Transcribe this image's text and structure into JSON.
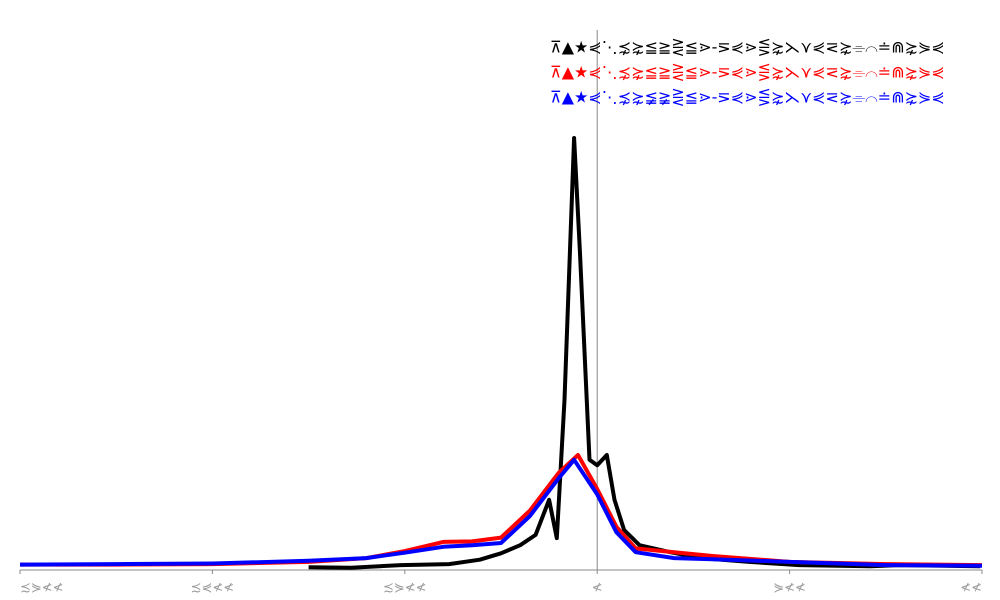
{
  "chart_data": {
    "type": "line",
    "xlim": [
      -3,
      2
    ],
    "ylim": [
      0,
      100
    ],
    "xticks": [
      {
        "value": -3,
        "label": "≾⋟≮≮"
      },
      {
        "value": -2,
        "label": "≾⋞≮≮"
      },
      {
        "value": -1,
        "label": "≾⋟≮≮"
      },
      {
        "value": 0,
        "label": "≮"
      },
      {
        "value": 1,
        "label": "⋟≮≮"
      },
      {
        "value": 2,
        "label": "≮≮"
      }
    ],
    "series": [
      {
        "name": "⊼▲★⋞⋱⋨⋩≦≧⋛≦⋗-⋝⋞⋗⋚⋩⋋⋎⋞⋜⋩⌯⌒≐⋒⋩⋟⋞",
        "color": "#000000",
        "x": [
          -1.5,
          -1.28,
          -1.02,
          -0.77,
          -0.61,
          -0.5,
          -0.4,
          -0.32,
          -0.25,
          -0.21,
          -0.17,
          -0.12,
          -0.09,
          -0.04,
          0,
          0.05,
          0.09,
          0.14,
          0.22,
          0.38,
          0.54,
          0.79,
          1.05,
          1.42,
          1.57,
          1.99
        ],
        "values": [
          0.5,
          0.4,
          0.9,
          1.1,
          1.9,
          3.1,
          4.6,
          6.5,
          13,
          5.9,
          31.5,
          80,
          59,
          20.4,
          19.4,
          21.3,
          13,
          7.4,
          4.6,
          3.3,
          2.2,
          1.5,
          0.9,
          0.7,
          0.9,
          0.7
        ]
      },
      {
        "name": "⊼▲★⋞⋱⋨⋩≦≧⋛≦⋗-⋝⋞⋗⋚⋩⋋⋎⋞⋜⋩⌯⌒≐⋒⋩⋟⋞ ",
        "color": "#ff0000",
        "x": [
          -3,
          -2.5,
          -2,
          -1.5,
          -1.2,
          -1,
          -0.8,
          -0.65,
          -0.5,
          -0.35,
          -0.2,
          -0.1,
          0,
          0.1,
          0.2,
          0.4,
          0.6,
          1,
          1.5,
          2
        ],
        "values": [
          1,
          1,
          1.1,
          1.5,
          2.2,
          3.5,
          5.2,
          5.3,
          6,
          11,
          18,
          21.3,
          15,
          8,
          4,
          3.3,
          2.6,
          1.5,
          1.1,
          0.9
        ]
      },
      {
        "name": "⊼▲★⋞⋱⋨⋩≨≩⋛≦⋗-⋝⋞⋗⋚⋩⋋⋎⋞⋜⋩⌯⌒≐⋒⋩⋟⋞",
        "color": "#0000ff",
        "x": [
          -3,
          -2.5,
          -2,
          -1.5,
          -1.2,
          -1,
          -0.8,
          -0.65,
          -0.5,
          -0.35,
          -0.2,
          -0.12,
          0,
          0.1,
          0.2,
          0.4,
          0.6,
          1,
          1.5,
          2
        ],
        "values": [
          1,
          1.1,
          1.2,
          1.7,
          2.2,
          3.2,
          4.3,
          4.6,
          5,
          10,
          17,
          20.4,
          14,
          7,
          3.3,
          2.2,
          2,
          1.5,
          0.9,
          0.8
        ]
      }
    ]
  }
}
